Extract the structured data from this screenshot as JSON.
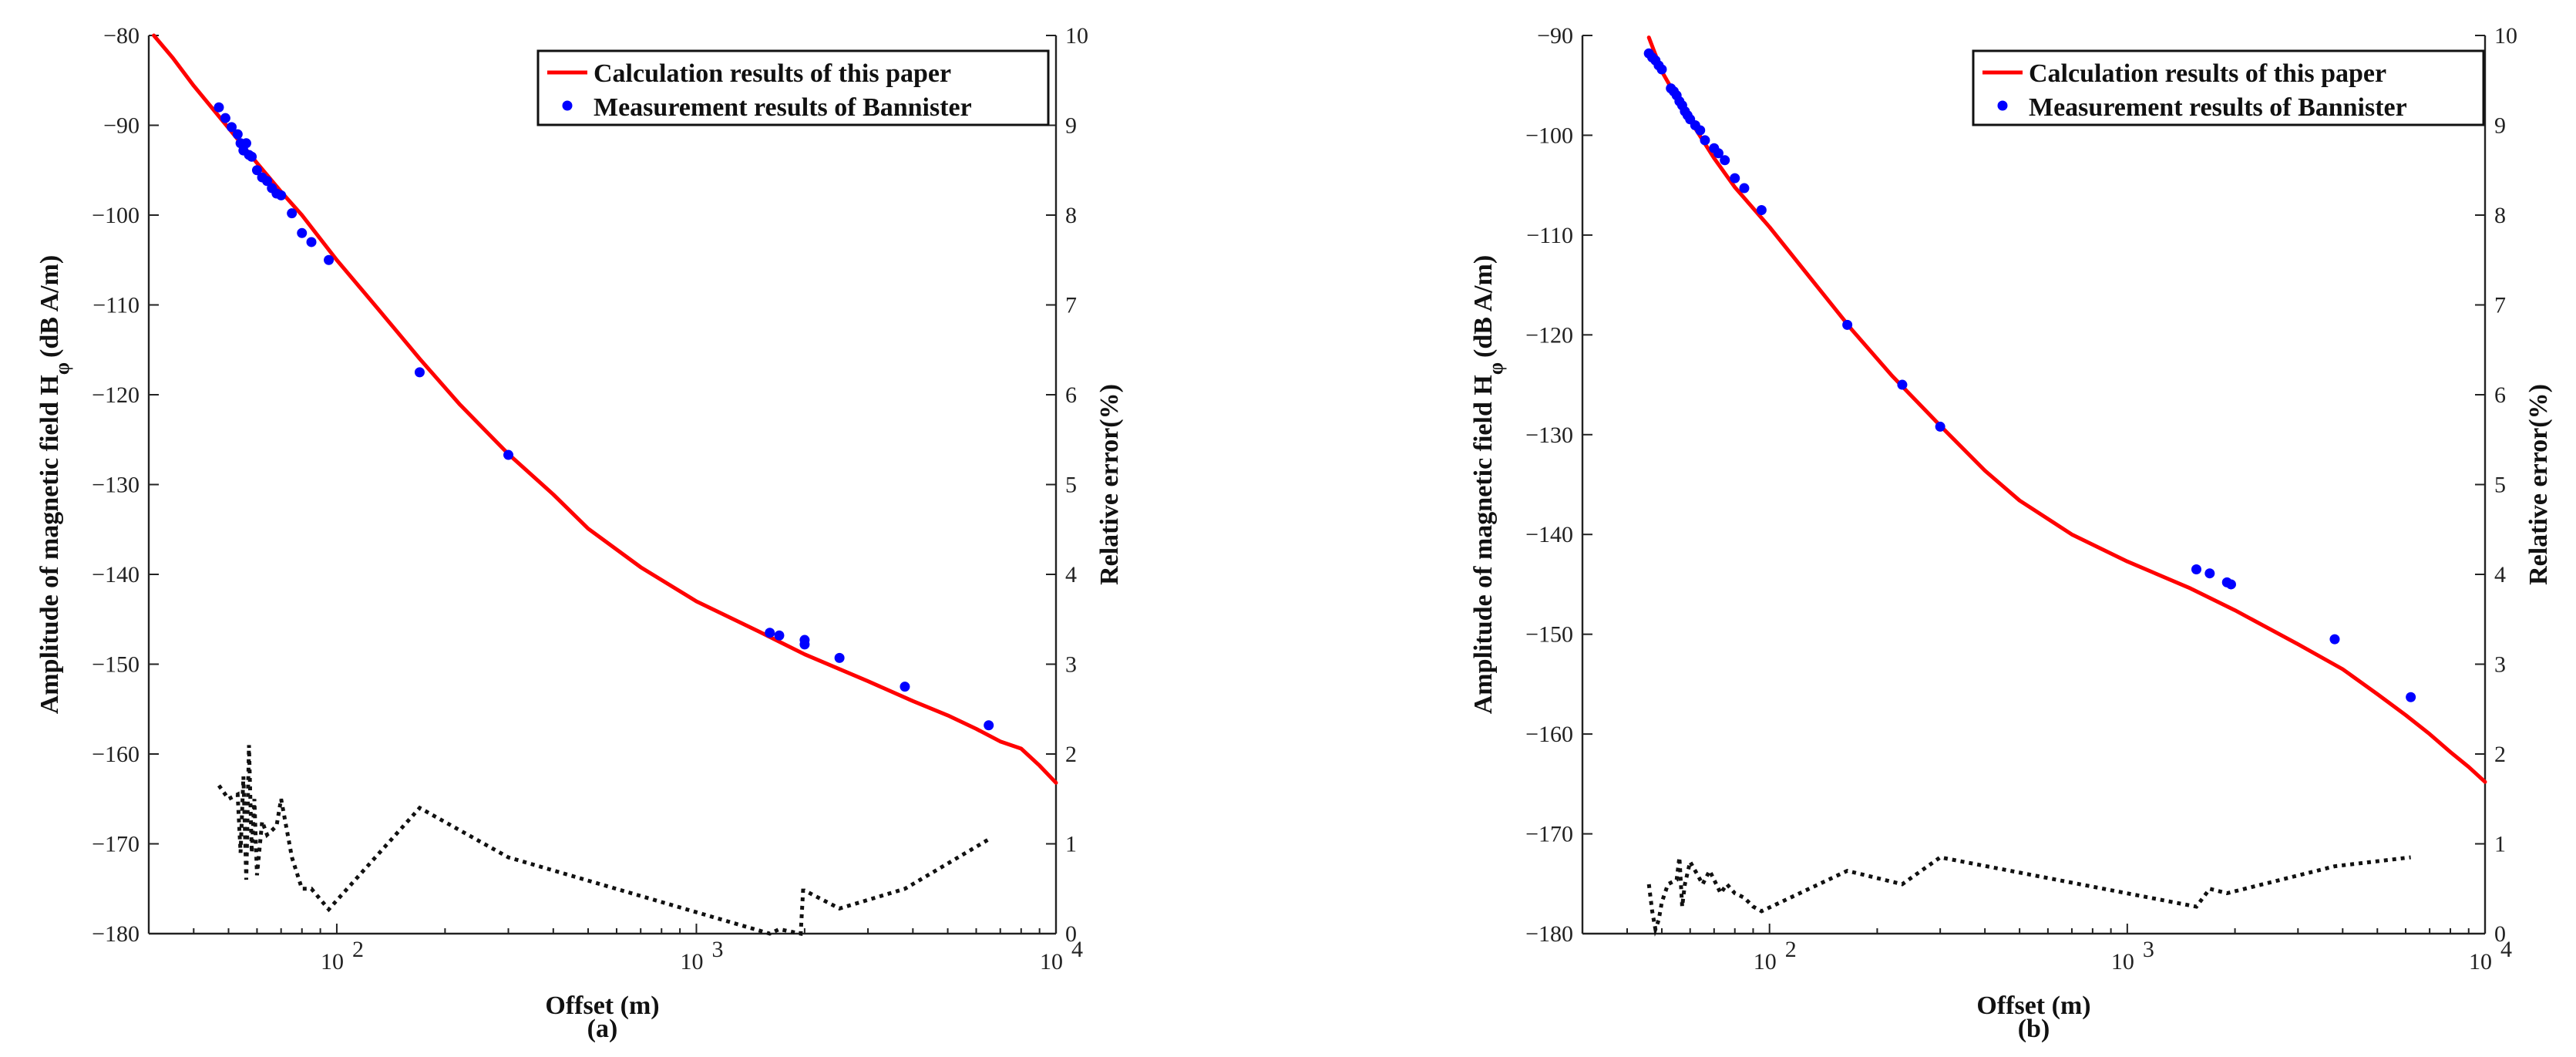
{
  "chart_data": [
    {
      "type": "line",
      "panel_label": "(a)",
      "xlabel": "Offset (m)",
      "ylabel_main": "Amplitude of magnetic field H",
      "ylabel_sub": "φ",
      "ylabel_unit": "(dB A/m)",
      "y2label": "Relative error(%)",
      "xscale": "log",
      "xlim": [
        30,
        10000
      ],
      "xticks": [
        100,
        1000,
        10000
      ],
      "xtick_labels": [
        [
          "10",
          "2"
        ],
        [
          "10",
          "3"
        ],
        [
          "10",
          "4"
        ]
      ],
      "ylim": [
        -180,
        -80
      ],
      "yticks": [
        -80,
        -90,
        -100,
        -110,
        -120,
        -130,
        -140,
        -150,
        -160,
        -170,
        -180
      ],
      "y2lim": [
        0,
        10
      ],
      "y2ticks": [
        0,
        1,
        2,
        3,
        4,
        5,
        6,
        7,
        8,
        9,
        10
      ],
      "legend": {
        "position": "top-right",
        "entries": [
          "Calculation results of this paper",
          "Measurement results of Bannister"
        ]
      },
      "series": [
        {
          "name": "Calculation results of this paper",
          "style": "red-solid",
          "axis": "left",
          "x": [
            31,
            35,
            40,
            50,
            60,
            70,
            80,
            100,
            130,
            170,
            220,
            300,
            400,
            500,
            700,
            1000,
            1500,
            2000,
            3000,
            4000,
            5000,
            6000,
            7000,
            8000,
            9000,
            10000
          ],
          "y": [
            -80,
            -82.5,
            -85.6,
            -90.3,
            -94.2,
            -97.4,
            -100.0,
            -105.0,
            -110.4,
            -116.0,
            -121.1,
            -126.6,
            -131.1,
            -134.9,
            -139.2,
            -143.0,
            -146.4,
            -148.9,
            -151.9,
            -154.1,
            -155.7,
            -157.2,
            -158.6,
            -159.4,
            -161.3,
            -163.2
          ]
        },
        {
          "name": "Measurement results of Bannister",
          "style": "blue-dots",
          "axis": "left",
          "x": [
            47,
            49,
            51,
            53,
            54,
            55,
            56,
            57,
            58,
            60,
            62,
            64,
            66,
            68,
            70,
            75,
            80,
            85,
            95,
            170,
            300,
            1600,
            1700,
            2000,
            2000,
            2500,
            3800,
            6500
          ],
          "y": [
            -88,
            -89.2,
            -90.2,
            -91,
            -92,
            -92.8,
            -92,
            -93.3,
            -93.5,
            -95,
            -95.8,
            -96.2,
            -97,
            -97.6,
            -97.8,
            -99.8,
            -102,
            -103,
            -105,
            -117.5,
            -126.7,
            -146.5,
            -146.8,
            -147.8,
            -147.3,
            -149.3,
            -152.5,
            -156.8
          ]
        },
        {
          "name": "Relative error",
          "style": "black-dotted",
          "axis": "right",
          "x": [
            47,
            50,
            53,
            54,
            55,
            56,
            57,
            58,
            59,
            60,
            62,
            64,
            66,
            68,
            70,
            75,
            80,
            85,
            95,
            170,
            300,
            1600,
            1700,
            1950,
            1980,
            2000,
            2500,
            3800,
            6500
          ],
          "y": [
            1.65,
            1.5,
            1.55,
            0.9,
            1.75,
            0.6,
            2.1,
            0.9,
            1.5,
            0.65,
            1.25,
            1.1,
            1.15,
            1.2,
            1.5,
            0.85,
            0.5,
            0.5,
            0.27,
            1.4,
            0.85,
            0.0,
            0.05,
            0.0,
            0.48,
            0.48,
            0.28,
            0.5,
            1.05
          ]
        }
      ]
    },
    {
      "type": "line",
      "panel_label": "(b)",
      "xlabel": "Offset (m)",
      "ylabel_main": "Amplitude of magnetic field H",
      "ylabel_sub": "φ",
      "ylabel_unit": "(dB A/m)",
      "y2label": "Relative error(%)",
      "xscale": "log",
      "xlim": [
        30,
        10000
      ],
      "xticks": [
        100,
        1000,
        10000
      ],
      "xtick_labels": [
        [
          "10",
          "2"
        ],
        [
          "10",
          "3"
        ],
        [
          "10",
          "4"
        ]
      ],
      "ylim": [
        -180,
        -90
      ],
      "yticks": [
        -90,
        -100,
        -110,
        -120,
        -130,
        -140,
        -150,
        -160,
        -170,
        -180
      ],
      "y2lim": [
        0,
        10
      ],
      "y2ticks": [
        0,
        1,
        2,
        3,
        4,
        5,
        6,
        7,
        8,
        9,
        10
      ],
      "legend": {
        "position": "top-right",
        "entries": [
          "Calculation results of this paper",
          "Measurement results of Bannister"
        ]
      },
      "series": [
        {
          "name": "Calculation results of this paper",
          "style": "red-solid",
          "axis": "left",
          "x": [
            46,
            50,
            55,
            60,
            70,
            80,
            100,
            130,
            170,
            220,
            300,
            400,
            500,
            700,
            1000,
            1500,
            2000,
            3000,
            4000,
            5000,
            6000,
            7000,
            8000,
            9000,
            10000
          ],
          "y": [
            -90.2,
            -93.6,
            -96.2,
            -98.5,
            -102.3,
            -105.2,
            -109.2,
            -114.3,
            -119.5,
            -124.1,
            -129.1,
            -133.6,
            -136.6,
            -140.0,
            -142.7,
            -145.4,
            -147.6,
            -151.0,
            -153.5,
            -156.0,
            -158.1,
            -160.0,
            -161.8,
            -163.3,
            -164.8
          ]
        },
        {
          "name": "Measurement results of Bannister",
          "style": "blue-dots",
          "axis": "left",
          "x": [
            46,
            47,
            48,
            49,
            50,
            53,
            54,
            55,
            56,
            57,
            58,
            59,
            60,
            62,
            64,
            66,
            70,
            72,
            75,
            80,
            85,
            95,
            165,
            235,
            300,
            1560,
            1700,
            1900,
            1950,
            3800,
            6200
          ],
          "y": [
            -91.8,
            -92.2,
            -92.5,
            -93,
            -93.4,
            -95.3,
            -95.6,
            -96,
            -96.6,
            -97,
            -97.6,
            -98,
            -98.4,
            -99,
            -99.5,
            -100.5,
            -101.3,
            -101.8,
            -102.5,
            -104.3,
            -105.3,
            -107.5,
            -119,
            -125,
            -129.2,
            -143.5,
            -143.9,
            -144.8,
            -145,
            -150.5,
            -156.3
          ]
        },
        {
          "name": "Relative error",
          "style": "black-dotted",
          "axis": "right",
          "x": [
            46,
            47,
            48,
            49,
            50,
            52,
            55,
            56,
            57,
            58,
            60,
            63,
            65,
            68,
            70,
            73,
            76,
            80,
            85,
            90,
            95,
            165,
            235,
            300,
            1560,
            1700,
            1900,
            3800,
            6200
          ],
          "y": [
            0.55,
            0.25,
            0.05,
            0.15,
            0.35,
            0.55,
            0.6,
            0.85,
            0.3,
            0.55,
            0.8,
            0.65,
            0.55,
            0.7,
            0.6,
            0.45,
            0.55,
            0.45,
            0.4,
            0.3,
            0.25,
            0.7,
            0.55,
            0.85,
            0.3,
            0.5,
            0.45,
            0.75,
            0.85
          ]
        }
      ]
    }
  ]
}
